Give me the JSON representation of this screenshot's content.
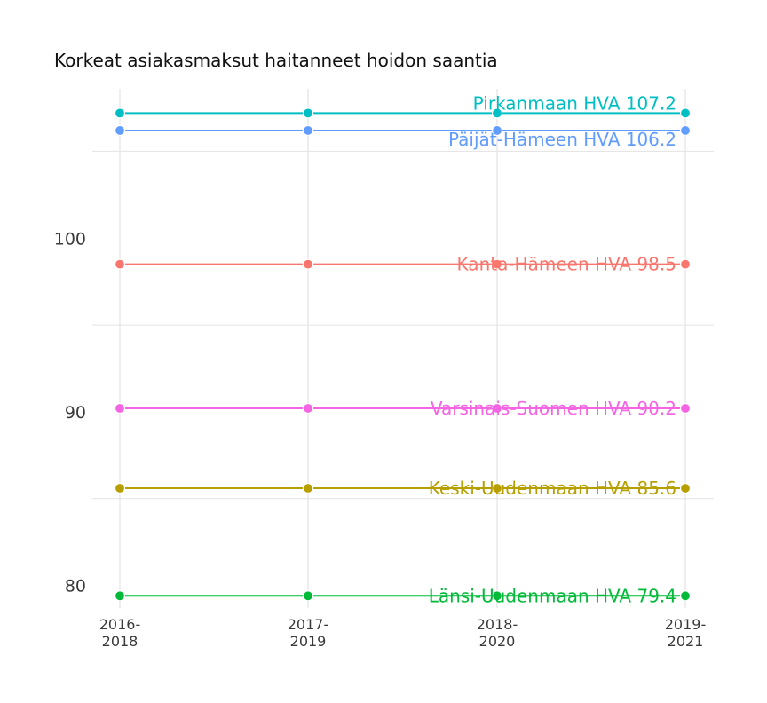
{
  "chart_data": {
    "type": "line",
    "title": "Korkeat asiakasmaksut haitanneet hoidon saantia",
    "xlabel": "",
    "ylabel": "",
    "categories": [
      [
        "2016-",
        "2018"
      ],
      [
        "2017-",
        "2019"
      ],
      [
        "2018-",
        "2020"
      ],
      [
        "2019-",
        "2021"
      ]
    ],
    "ylim": [
      78.7,
      108.6
    ],
    "yticks": [
      80,
      90,
      100
    ],
    "grid": true,
    "series": [
      {
        "name": "Pirkanmaan HVA",
        "label": "Pirkanmaan HVA 107.2",
        "values": [
          107.2,
          107.2,
          107.2,
          107.2
        ],
        "color": "#00BFC4"
      },
      {
        "name": "Päijät-Hämeen HVA",
        "label": "Päijät-Hämeen HVA 106.2",
        "values": [
          106.2,
          106.2,
          106.2,
          106.2
        ],
        "color": "#619CFF"
      },
      {
        "name": "Kanta-Hämeen HVA",
        "label": "Kanta-Hämeen HVA 98.5",
        "values": [
          98.5,
          98.5,
          98.5,
          98.5
        ],
        "color": "#F8766D"
      },
      {
        "name": "Varsinais-Suomen HVA",
        "label": "Varsinais-Suomen HVA 90.2",
        "values": [
          90.2,
          90.2,
          90.2,
          90.2
        ],
        "color": "#F564E3"
      },
      {
        "name": "Keski-Uudenmaan HVA",
        "label": "Keski-Uudenmaan HVA 85.6",
        "values": [
          85.6,
          85.6,
          85.6,
          85.6
        ],
        "color": "#B79F00"
      },
      {
        "name": "Länsi-Uudenmaan HVA",
        "label": "Länsi-Uudenmaan HVA 79.4",
        "values": [
          79.4,
          79.4,
          79.4,
          79.4
        ],
        "color": "#00BA38"
      }
    ]
  }
}
